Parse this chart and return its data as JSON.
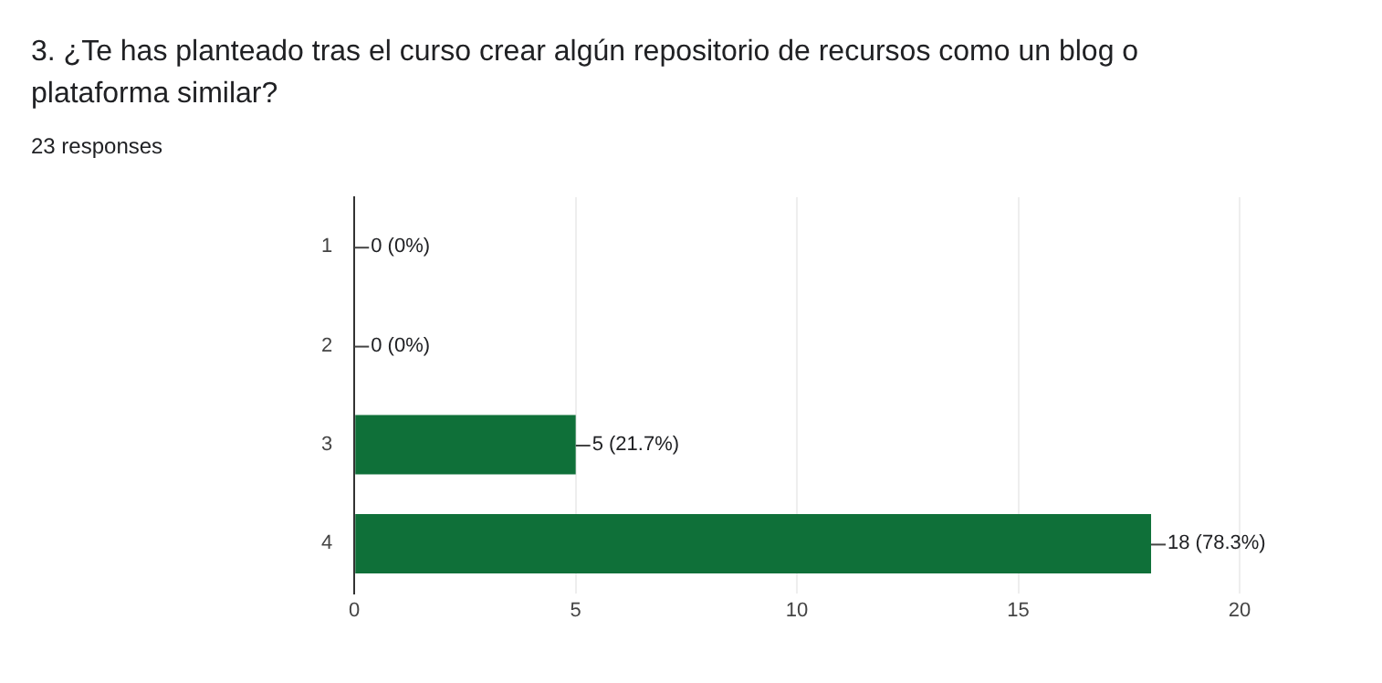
{
  "chart_data": {
    "type": "bar",
    "orientation": "horizontal",
    "title": "3. ¿Te has planteado tras el curso crear algún repositorio de recursos como un blog o plataforma similar?",
    "subtitle": "23 responses",
    "categories": [
      "1",
      "2",
      "3",
      "4"
    ],
    "values": [
      0,
      0,
      5,
      18
    ],
    "value_labels": [
      "0 (0%)",
      "0 (0%)",
      "5 (21.7%)",
      "18 (78.3%)"
    ],
    "color": "#0f7039",
    "xlim": [
      0,
      20
    ],
    "xticks": [
      0,
      5,
      10,
      15,
      20
    ],
    "grid": "x"
  }
}
